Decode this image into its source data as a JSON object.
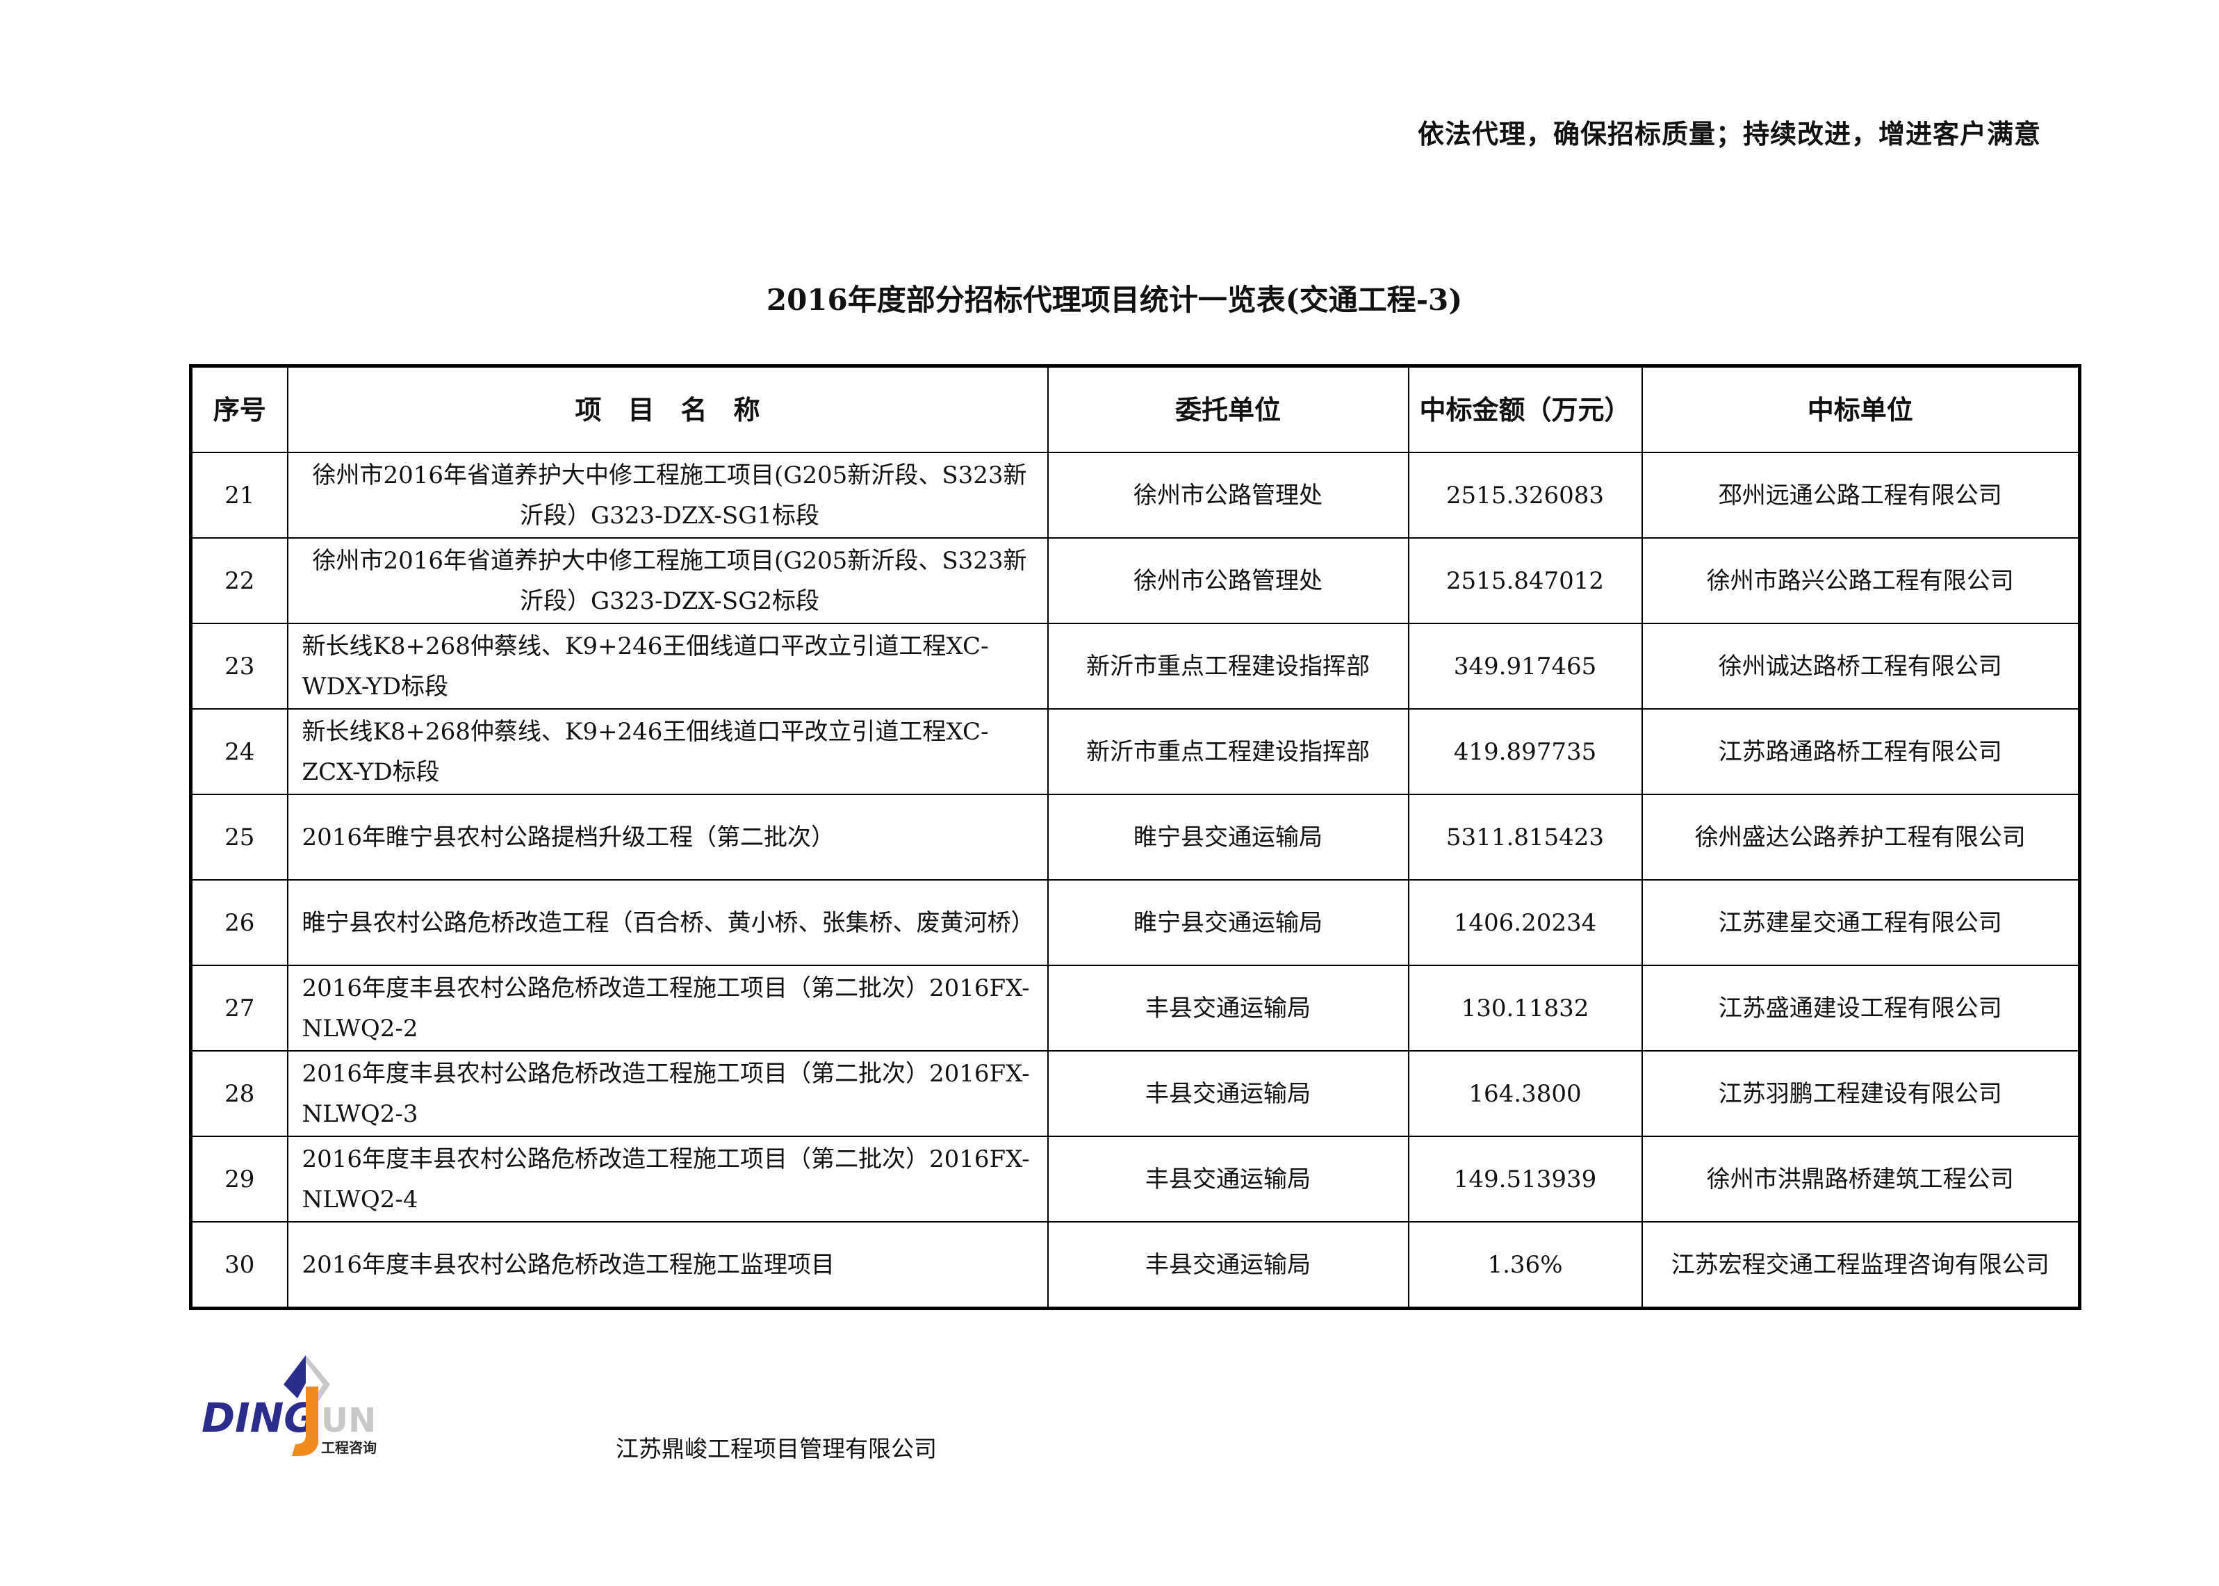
{
  "header": {
    "slogan": "依法代理，确保招标质量；持续改进，增进客户满意"
  },
  "title": "2016年度部分招标代理项目统计一览表(交通工程-3)",
  "table": {
    "headers": [
      "序号",
      "项　目　名　称",
      "委托单位",
      "中标金额（万元）",
      "中标单位"
    ],
    "rows": [
      {
        "no": "21",
        "name": "徐州市2016年省道养护大中修工程施工项目(G205新沂段、S323新沂段）G323-DZX-SG1标段",
        "client": "徐州市公路管理处",
        "amount": "2515.326083",
        "winner": "邳州远通公路工程有限公司"
      },
      {
        "no": "22",
        "name": "徐州市2016年省道养护大中修工程施工项目(G205新沂段、S323新沂段）G323-DZX-SG2标段",
        "client": "徐州市公路管理处",
        "amount": "2515.847012",
        "winner": "徐州市路兴公路工程有限公司"
      },
      {
        "no": "23",
        "name": "新长线K8+268仲蔡线、K9+246王佃线道口平改立引道工程XC-WDX-YD标段",
        "client": "新沂市重点工程建设指挥部",
        "amount": "349.917465",
        "winner": "徐州诚达路桥工程有限公司"
      },
      {
        "no": "24",
        "name": "新长线K8+268仲蔡线、K9+246王佃线道口平改立引道工程XC-ZCX-YD标段",
        "client": "新沂市重点工程建设指挥部",
        "amount": "419.897735",
        "winner": "江苏路通路桥工程有限公司"
      },
      {
        "no": "25",
        "name": "2016年睢宁县农村公路提档升级工程（第二批次）",
        "client": "睢宁县交通运输局",
        "amount": "5311.815423",
        "winner": "徐州盛达公路养护工程有限公司"
      },
      {
        "no": "26",
        "name": "睢宁县农村公路危桥改造工程（百合桥、黄小桥、张集桥、废黄河桥）",
        "client": "睢宁县交通运输局",
        "amount": "1406.20234",
        "winner": "江苏建星交通工程有限公司"
      },
      {
        "no": "27",
        "name": "2016年度丰县农村公路危桥改造工程施工项目（第二批次）2016FX-NLWQ2-2",
        "client": "丰县交通运输局",
        "amount": "130.11832",
        "winner": "江苏盛通建设工程有限公司"
      },
      {
        "no": "28",
        "name": "2016年度丰县农村公路危桥改造工程施工项目（第二批次）2016FX-NLWQ2-3",
        "client": "丰县交通运输局",
        "amount": "164.3800",
        "winner": "江苏羽鹏工程建设有限公司"
      },
      {
        "no": "29",
        "name": "2016年度丰县农村公路危桥改造工程施工项目（第二批次）2016FX-NLWQ2-4",
        "client": "丰县交通运输局",
        "amount": "149.513939",
        "winner": "徐州市洪鼎路桥建筑工程公司"
      },
      {
        "no": "30",
        "name": "2016年度丰县农村公路危桥改造工程施工监理项目",
        "client": "丰县交通运输局",
        "amount": "1.36%",
        "winner": "江苏宏程交通工程监理咨询有限公司"
      }
    ]
  },
  "footer": {
    "logo_text": "DINGJUN",
    "logo_sub": "工程咨询",
    "company": "江苏鼎峻工程项目管理有限公司"
  },
  "colors": {
    "logo_blue": "#2b2d8c",
    "logo_orange": "#f08a1c",
    "logo_gray": "#c8c8c8"
  }
}
